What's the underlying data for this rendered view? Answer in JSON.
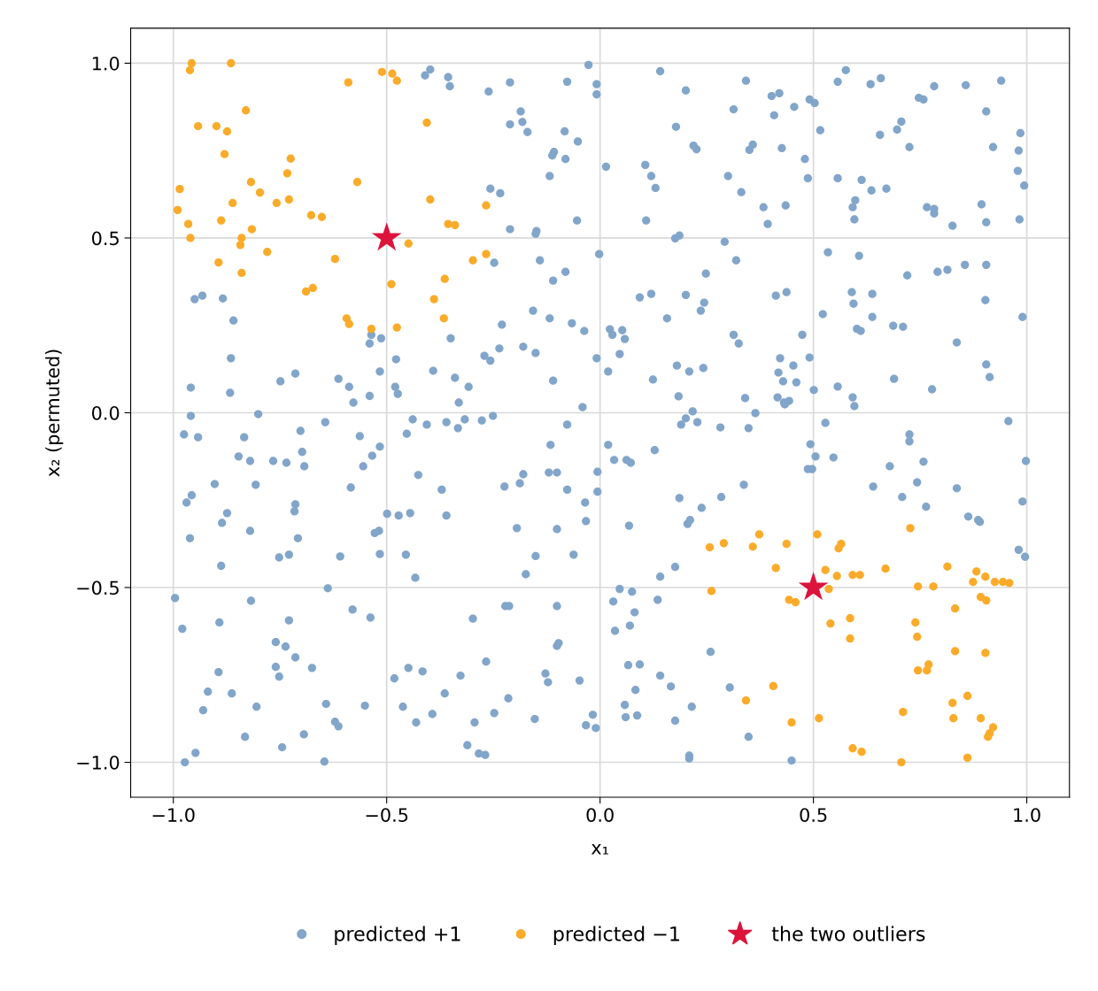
{
  "chart_data": {
    "type": "scatter",
    "xlabel": "x₁",
    "ylabel": "x₂ (permuted)",
    "xlim": [
      -1.1,
      1.1
    ],
    "ylim": [
      -1.1,
      1.1
    ],
    "xticks": [
      {
        "value": -1.0,
        "label": "−1.0"
      },
      {
        "value": -0.5,
        "label": "−0.5"
      },
      {
        "value": 0.0,
        "label": "0.0"
      },
      {
        "value": 0.5,
        "label": "0.5"
      },
      {
        "value": 1.0,
        "label": "1.0"
      }
    ],
    "yticks": [
      {
        "value": -1.0,
        "label": "−1.0"
      },
      {
        "value": -0.5,
        "label": "−0.5"
      },
      {
        "value": 0.0,
        "label": "0.0"
      },
      {
        "value": 0.5,
        "label": "0.5"
      },
      {
        "value": 1.0,
        "label": "1.0"
      }
    ],
    "grid": true,
    "legend": "bottom",
    "series": [
      {
        "name": "predicted +1",
        "color": "#82a5ca",
        "marker": "circle",
        "x": [
          -0.996,
          -0.979,
          -0.973,
          -0.948,
          -0.93,
          -0.919,
          -0.894,
          -0.892,
          -0.888,
          -0.886,
          -0.874,
          -0.903,
          -0.961,
          -0.957,
          -0.969,
          -0.975,
          -0.942,
          -0.959,
          -0.959,
          -0.867,
          -0.865,
          -0.859,
          -0.884,
          -0.932,
          -0.95,
          -0.863,
          -0.832,
          -0.818,
          -0.82,
          -0.807,
          -0.82,
          -0.847,
          -0.834,
          -0.801,
          -0.805,
          -0.745,
          -0.752,
          -0.76,
          -0.76,
          -0.737,
          -0.729,
          -0.714,
          -0.752,
          -0.729,
          -0.708,
          -0.716,
          -0.714,
          -0.766,
          -0.735,
          -0.693,
          -0.698,
          -0.702,
          -0.749,
          -0.714,
          -0.694,
          -0.675,
          -0.644,
          -0.638,
          -0.646,
          -0.642,
          -0.621,
          -0.613,
          -0.609,
          -0.613,
          -0.588,
          -0.58,
          -0.584,
          -0.578,
          -0.563,
          -0.555,
          -0.551,
          -0.54,
          -0.538,
          -0.534,
          -0.54,
          -0.536,
          -0.528,
          -0.518,
          -0.516,
          -0.516,
          -0.513,
          -0.516,
          -0.499,
          -0.482,
          -0.48,
          -0.474,
          -0.478,
          -0.472,
          -0.462,
          -0.455,
          -0.453,
          -0.449,
          -0.445,
          -0.439,
          -0.433,
          -0.431,
          -0.426,
          -0.416,
          -0.41,
          -0.398,
          -0.391,
          -0.393,
          -0.406,
          -0.371,
          -0.36,
          -0.364,
          -0.36,
          -0.356,
          -0.352,
          -0.35,
          -0.34,
          -0.333,
          -0.331,
          -0.327,
          -0.317,
          -0.311,
          -0.308,
          -0.298,
          -0.294,
          -0.284,
          -0.277,
          -0.271,
          -0.269,
          -0.267,
          -0.257,
          -0.257,
          -0.261,
          -0.248,
          -0.251,
          -0.248,
          -0.236,
          -0.234,
          -0.23,
          -0.224,
          -0.222,
          -0.213,
          -0.215,
          -0.211,
          -0.211,
          -0.211,
          -0.188,
          -0.195,
          -0.186,
          -0.182,
          -0.18,
          -0.18,
          -0.174,
          -0.17,
          -0.157,
          -0.153,
          -0.151,
          -0.151,
          -0.151,
          -0.149,
          -0.141,
          -0.128,
          -0.122,
          -0.12,
          -0.118,
          -0.118,
          -0.116,
          -0.112,
          -0.11,
          -0.11,
          -0.108,
          -0.101,
          -0.101,
          -0.101,
          -0.101,
          -0.097,
          -0.083,
          -0.081,
          -0.081,
          -0.077,
          -0.077,
          -0.077,
          -0.066,
          -0.062,
          -0.054,
          -0.052,
          -0.048,
          -0.041,
          -0.037,
          -0.035,
          -0.033,
          -0.033,
          -0.027,
          -0.017,
          -0.01,
          -0.008,
          -0.008,
          -0.008,
          -0.006,
          -0.006,
          -0.002,
          0.014,
          0.019,
          0.019,
          0.023,
          0.031,
          0.029,
          0.033,
          0.035,
          0.046,
          0.046,
          0.052,
          0.058,
          0.058,
          0.06,
          0.062,
          0.066,
          0.068,
          0.07,
          0.072,
          0.075,
          0.081,
          0.083,
          0.087,
          0.093,
          0.093,
          0.106,
          0.108,
          0.12,
          0.12,
          0.124,
          0.128,
          0.13,
          0.135,
          0.141,
          0.141,
          0.141,
          0.157,
          0.166,
          0.176,
          0.176,
          0.178,
          0.176,
          0.18,
          0.184,
          0.186,
          0.186,
          0.19,
          0.201,
          0.201,
          0.201,
          0.205,
          0.209,
          0.209,
          0.209,
          0.211,
          0.215,
          0.217,
          0.219,
          0.228,
          0.226,
          0.236,
          0.238,
          0.242,
          0.244,
          0.248,
          0.259,
          0.282,
          0.284,
          0.292,
          0.3,
          0.304,
          0.313,
          0.313,
          0.319,
          0.325,
          0.331,
          0.337,
          0.342,
          0.34,
          0.348,
          0.35,
          0.348,
          0.358,
          0.364,
          0.383,
          0.393,
          0.402,
          0.408,
          0.412,
          0.416,
          0.42,
          0.418,
          0.422,
          0.426,
          0.429,
          0.431,
          0.433,
          0.435,
          0.437,
          0.443,
          0.449,
          0.453,
          0.455,
          0.46,
          0.474,
          0.48,
          0.487,
          0.491,
          0.491,
          0.493,
          0.497,
          0.503,
          0.501,
          0.487,
          0.505,
          0.516,
          0.522,
          0.528,
          0.534,
          0.547,
          0.557,
          0.557,
          0.557,
          0.576,
          0.59,
          0.594,
          0.598,
          0.596,
          0.592,
          0.602,
          0.592,
          0.596,
          0.607,
          0.611,
          0.613,
          0.634,
          0.636,
          0.638,
          0.638,
          0.64,
          0.656,
          0.658,
          0.671,
          0.679,
          0.689,
          0.696,
          0.706,
          0.687,
          0.708,
          0.71,
          0.72,
          0.725,
          0.725,
          0.725,
          0.743,
          0.747,
          0.758,
          0.758,
          0.766,
          0.764,
          0.778,
          0.783,
          0.783,
          0.783,
          0.791,
          0.814,
          0.826,
          0.836,
          0.836,
          0.855,
          0.857,
          0.863,
          0.886,
          0.89,
          0.894,
          0.905,
          0.905,
          0.905,
          0.903,
          0.905,
          0.913,
          0.921,
          0.94,
          0.957,
          0.979,
          0.981,
          0.981,
          0.983,
          0.985,
          0.99,
          0.99,
          0.994,
          0.996,
          0.998
        ],
        "values": [
          -0.53,
          -0.618,
          -1.0,
          -0.973,
          -0.851,
          -0.798,
          -0.742,
          -0.6,
          -0.438,
          -0.315,
          -0.287,
          -0.204,
          -0.359,
          -0.236,
          -0.257,
          -0.062,
          -0.07,
          -0.009,
          0.072,
          0.057,
          0.156,
          0.264,
          0.327,
          0.335,
          0.325,
          -0.803,
          -0.927,
          -0.538,
          -0.338,
          -0.206,
          -0.138,
          -0.125,
          -0.07,
          -0.004,
          -0.841,
          -0.957,
          -0.755,
          -0.727,
          -0.656,
          -0.669,
          -0.594,
          -0.7,
          -0.414,
          -0.406,
          -0.359,
          -0.282,
          -0.262,
          -0.138,
          -0.143,
          -0.153,
          -0.112,
          -0.052,
          0.09,
          0.112,
          -0.92,
          -0.73,
          -0.027,
          -0.502,
          -0.998,
          -0.833,
          -0.884,
          -0.897,
          -0.411,
          0.097,
          0.074,
          -0.563,
          -0.214,
          0.029,
          -0.067,
          -0.153,
          -0.838,
          0.048,
          -0.586,
          -0.123,
          0.198,
          0.223,
          -0.344,
          -0.338,
          -0.404,
          -0.097,
          0.213,
          0.118,
          -0.289,
          -0.76,
          0.074,
          0.054,
          0.153,
          -0.294,
          -0.841,
          -0.406,
          -0.06,
          -0.73,
          -0.287,
          -0.019,
          -0.472,
          -0.886,
          -0.178,
          -0.74,
          0.965,
          0.982,
          0.12,
          -0.862,
          -0.034,
          -0.22,
          -0.294,
          -0.803,
          -0.027,
          0.96,
          0.934,
          0.213,
          0.1,
          -0.044,
          0.029,
          -0.752,
          -0.019,
          -0.951,
          0.074,
          -0.589,
          -0.886,
          -0.975,
          -0.022,
          0.163,
          -0.979,
          -0.712,
          0.149,
          0.641,
          0.919,
          0.429,
          -0.009,
          -0.859,
          0.184,
          0.628,
          0.252,
          -0.211,
          -0.553,
          -0.553,
          -0.817,
          0.945,
          0.825,
          0.525,
          -0.202,
          -0.33,
          0.862,
          0.832,
          0.189,
          -0.176,
          -0.462,
          0.803,
          0.292,
          -0.876,
          0.171,
          0.512,
          -0.41,
          0.52,
          0.436,
          -0.746,
          -0.771,
          -0.171,
          0.27,
          0.677,
          -0.092,
          0.736,
          0.378,
          0.092,
          0.746,
          -0.553,
          -0.667,
          -0.333,
          -0.171,
          -0.659,
          0.805,
          0.403,
          0.726,
          0.947,
          -0.034,
          -0.22,
          0.256,
          -0.406,
          0.55,
          0.776,
          -0.766,
          0.016,
          0.234,
          -0.257,
          -0.31,
          -0.894,
          0.995,
          -0.864,
          -0.902,
          0.94,
          0.911,
          0.156,
          -0.169,
          -0.226,
          0.454,
          0.704,
          -0.092,
          0.118,
          0.239,
          -0.54,
          0.223,
          -0.135,
          -0.624,
          0.168,
          -0.504,
          0.236,
          0.211,
          -0.836,
          -0.871,
          -0.135,
          -0.722,
          -0.323,
          -0.609,
          -0.143,
          -0.512,
          -0.571,
          -0.793,
          -0.866,
          -0.72,
          0.33,
          0.709,
          0.55,
          0.677,
          0.34,
          0.095,
          -0.107,
          0.643,
          -0.535,
          -0.469,
          -0.752,
          0.977,
          0.27,
          -0.783,
          -0.881,
          -0.441,
          0.818,
          0.499,
          0.135,
          0.047,
          0.507,
          -0.244,
          -0.034,
          0.337,
          0.922,
          -0.016,
          -0.318,
          0.118,
          -0.981,
          -0.989,
          -0.307,
          -0.841,
          0.004,
          0.764,
          -0.027,
          0.754,
          0.292,
          -0.272,
          0.128,
          0.315,
          0.398,
          -0.684,
          -0.042,
          -0.241,
          0.489,
          0.677,
          -0.786,
          0.223,
          0.868,
          0.436,
          0.198,
          0.631,
          -0.206,
          0.95,
          0.042,
          -0.044,
          0.752,
          -0.927,
          0.767,
          -0.001,
          0.588,
          0.54,
          0.906,
          0.851,
          0.335,
          0.044,
          0.914,
          0.115,
          0.156,
          0.757,
          0.09,
          0.029,
          0.024,
          0.593,
          0.345,
          0.034,
          -0.995,
          0.135,
          0.875,
          0.087,
          0.223,
          0.726,
          0.671,
          0.896,
          0.158,
          -0.09,
          -0.161,
          0.886,
          0.065,
          -0.161,
          -0.125,
          0.808,
          0.282,
          -0.029,
          0.459,
          -0.128,
          0.075,
          0.947,
          0.671,
          0.98,
          0.345,
          0.312,
          0.608,
          0.553,
          0.588,
          0.24,
          0.044,
          0.019,
          0.449,
          0.234,
          0.666,
          0.94,
          0.636,
          0.34,
          0.274,
          -0.211,
          0.795,
          0.957,
          0.641,
          -0.153,
          0.097,
          0.81,
          0.833,
          0.249,
          -0.241,
          0.246,
          0.393,
          0.76,
          -0.062,
          -0.082,
          -0.199,
          0.901,
          0.896,
          -0.14,
          0.588,
          -0.269,
          0.067,
          0.934,
          0.583,
          0.57,
          0.403,
          0.409,
          0.535,
          0.201,
          -0.216,
          0.423,
          0.937,
          -0.297,
          -0.307,
          -0.312,
          0.596,
          0.862,
          0.545,
          0.423,
          0.322,
          0.138,
          0.102,
          0.76,
          0.95,
          -0.024,
          0.692,
          -0.392,
          0.75,
          0.553,
          0.8,
          0.274,
          -0.254,
          0.65,
          -0.412,
          -0.138
        ]
      },
      {
        "name": "predicted −1",
        "color": "#fbab2a",
        "marker": "circle",
        "x": [
          -0.957,
          -0.961,
          -0.865,
          -0.942,
          -0.899,
          -0.874,
          -0.83,
          -0.88,
          -0.985,
          -0.99,
          -0.965,
          -0.96,
          -0.888,
          -0.861,
          -0.818,
          -0.797,
          -0.816,
          -0.84,
          -0.843,
          -0.894,
          -0.84,
          -0.78,
          -0.758,
          -0.729,
          -0.733,
          -0.725,
          -0.677,
          -0.652,
          -0.673,
          -0.689,
          -0.621,
          -0.569,
          -0.59,
          -0.511,
          -0.487,
          -0.476,
          -0.406,
          -0.398,
          -0.356,
          -0.34,
          -0.267,
          -0.267,
          -0.298,
          -0.449,
          -0.489,
          -0.364,
          -0.389,
          -0.366,
          -0.594,
          -0.588,
          -0.536,
          -0.476,
          0.257,
          0.29,
          0.373,
          0.358,
          0.437,
          0.412,
          0.509,
          0.565,
          0.559,
          0.528,
          0.592,
          0.555,
          0.536,
          0.261,
          0.443,
          0.458,
          0.54,
          0.586,
          0.586,
          0.609,
          0.669,
          0.745,
          0.781,
          0.814,
          0.727,
          0.739,
          0.743,
          0.77,
          0.766,
          0.745,
          0.832,
          0.832,
          0.903,
          0.882,
          0.874,
          0.903,
          0.892,
          0.905,
          0.925,
          0.944,
          0.959,
          0.826,
          0.861,
          0.892,
          0.913,
          0.909,
          0.861,
          0.828,
          0.71,
          0.706,
          0.592,
          0.613,
          0.513,
          0.449,
          0.406,
          0.342,
          0.921
        ],
        "values": [
          1.0,
          0.98,
          1.0,
          0.82,
          0.82,
          0.805,
          0.865,
          0.74,
          0.64,
          0.58,
          0.54,
          0.5,
          0.55,
          0.6,
          0.66,
          0.63,
          0.525,
          0.5,
          0.48,
          0.43,
          0.4,
          0.46,
          0.6,
          0.61,
          0.685,
          0.727,
          0.565,
          0.56,
          0.357,
          0.347,
          0.44,
          0.66,
          0.945,
          0.975,
          0.97,
          0.95,
          0.83,
          0.61,
          0.54,
          0.537,
          0.593,
          0.454,
          0.436,
          0.484,
          0.368,
          0.383,
          0.325,
          0.27,
          0.27,
          0.254,
          0.24,
          0.244,
          -0.385,
          -0.373,
          -0.348,
          -0.383,
          -0.375,
          -0.444,
          -0.348,
          -0.375,
          -0.388,
          -0.45,
          -0.464,
          -0.467,
          -0.504,
          -0.51,
          -0.535,
          -0.542,
          -0.603,
          -0.588,
          -0.646,
          -0.464,
          -0.446,
          -0.497,
          -0.497,
          -0.44,
          -0.33,
          -0.6,
          -0.641,
          -0.72,
          -0.737,
          -0.737,
          -0.682,
          -0.56,
          -0.687,
          -0.454,
          -0.484,
          -0.469,
          -0.527,
          -0.537,
          -0.484,
          -0.484,
          -0.487,
          -0.83,
          -0.81,
          -0.874,
          -0.917,
          -0.927,
          -0.987,
          -0.874,
          -0.856,
          -1.0,
          -0.96,
          -0.97,
          -0.874,
          -0.886,
          -0.782,
          -0.823,
          -0.9
        ]
      },
      {
        "name": "the two outliers",
        "color": "#dc143c",
        "marker": "star",
        "x": [
          -0.5,
          0.5
        ],
        "values": [
          0.5,
          -0.5
        ]
      }
    ]
  }
}
